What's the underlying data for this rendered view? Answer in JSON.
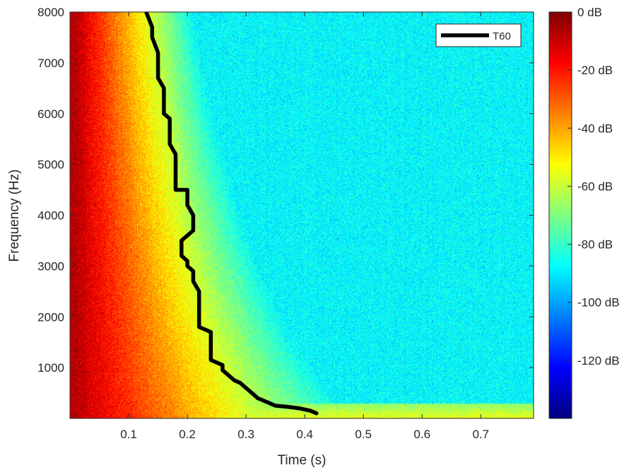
{
  "chart_data": {
    "type": "heatmap",
    "title": "",
    "xlabel": "Time (s)",
    "ylabel": "Frequency (Hz)",
    "xlim": [
      0,
      0.79
    ],
    "ylim": [
      0,
      8000
    ],
    "x_ticks": [
      0.1,
      0.2,
      0.3,
      0.4,
      0.5,
      0.6,
      0.7
    ],
    "x_tick_labels": [
      "0.1",
      "0.2",
      "0.3",
      "0.4",
      "0.5",
      "0.6",
      "0.7"
    ],
    "y_ticks": [
      1000,
      2000,
      3000,
      4000,
      5000,
      6000,
      7000,
      8000
    ],
    "y_tick_labels": [
      "1000",
      "2000",
      "3000",
      "4000",
      "5000",
      "6000",
      "7000",
      "8000"
    ],
    "colormap": "jet",
    "color_range_db": [
      -140,
      0
    ],
    "colorbar_ticks": [
      0,
      -20,
      -40,
      -60,
      -80,
      -100,
      -120
    ],
    "colorbar_tick_labels": [
      "0 dB",
      "-20 dB",
      "-40 dB",
      "-60 dB",
      "-80 dB",
      "-100 dB",
      "-120 dB"
    ],
    "background_level_db": -88,
    "low_frequency_floor_db": -55,
    "grid": false,
    "legend": {
      "position": "top-right",
      "entries": [
        "T60"
      ]
    },
    "series": [
      {
        "name": "T60",
        "color": "#000000",
        "points": [
          [
            0.42,
            100
          ],
          [
            0.41,
            150
          ],
          [
            0.39,
            200
          ],
          [
            0.37,
            230
          ],
          [
            0.35,
            250
          ],
          [
            0.34,
            300
          ],
          [
            0.32,
            400
          ],
          [
            0.31,
            500
          ],
          [
            0.3,
            600
          ],
          [
            0.29,
            700
          ],
          [
            0.28,
            750
          ],
          [
            0.27,
            850
          ],
          [
            0.26,
            950
          ],
          [
            0.26,
            1050
          ],
          [
            0.24,
            1150
          ],
          [
            0.24,
            1250
          ],
          [
            0.24,
            1400
          ],
          [
            0.24,
            1700
          ],
          [
            0.22,
            1800
          ],
          [
            0.22,
            2000
          ],
          [
            0.22,
            2300
          ],
          [
            0.22,
            2500
          ],
          [
            0.21,
            2700
          ],
          [
            0.21,
            2900
          ],
          [
            0.2,
            3000
          ],
          [
            0.2,
            3100
          ],
          [
            0.19,
            3200
          ],
          [
            0.19,
            3500
          ],
          [
            0.2,
            3600
          ],
          [
            0.21,
            3700
          ],
          [
            0.21,
            4000
          ],
          [
            0.2,
            4200
          ],
          [
            0.2,
            4500
          ],
          [
            0.18,
            4500
          ],
          [
            0.18,
            4800
          ],
          [
            0.18,
            5000
          ],
          [
            0.18,
            5200
          ],
          [
            0.17,
            5400
          ],
          [
            0.17,
            5600
          ],
          [
            0.17,
            5900
          ],
          [
            0.16,
            6000
          ],
          [
            0.16,
            6300
          ],
          [
            0.16,
            6500
          ],
          [
            0.15,
            6700
          ],
          [
            0.15,
            7000
          ],
          [
            0.15,
            7200
          ],
          [
            0.14,
            7500
          ],
          [
            0.14,
            7700
          ],
          [
            0.13,
            8000
          ]
        ]
      }
    ]
  }
}
